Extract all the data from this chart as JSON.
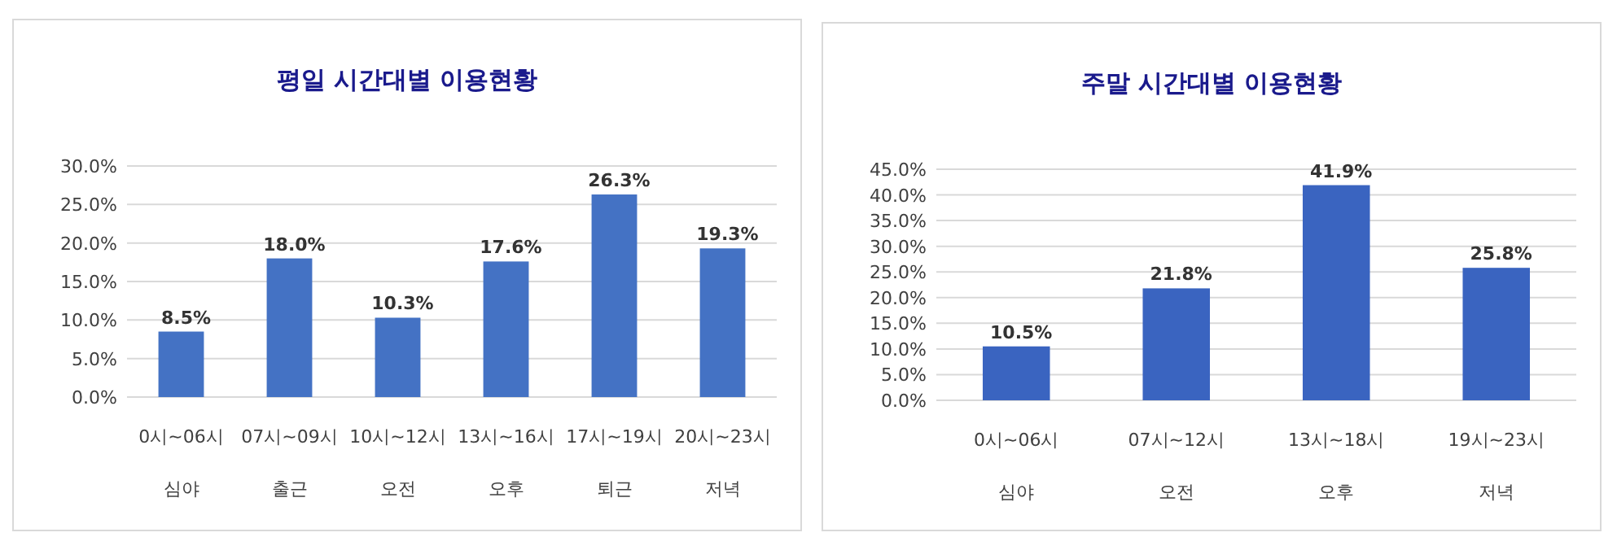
{
  "chart_data": [
    {
      "type": "bar",
      "title": "평일 시간대별 이용현황",
      "categories": [
        "0시~06시\n심야",
        "07시~09시\n출근",
        "10시~12시\n오전",
        "13시~16시\n오후",
        "17시~19시\n퇴근",
        "20시~23시\n저녁"
      ],
      "values": [
        8.5,
        18.0,
        10.3,
        17.6,
        26.3,
        19.3
      ],
      "value_labels": [
        "8.5%",
        "18.0%",
        "10.3%",
        "17.6%",
        "26.3%",
        "19.3%"
      ],
      "color": "#4472c4",
      "ylim": [
        0,
        30
      ],
      "yticks": [
        {
          "value": 0,
          "label": "0.0%"
        },
        {
          "value": 5,
          "label": "5.0%"
        },
        {
          "value": 10,
          "label": "10.0%"
        },
        {
          "value": 15,
          "label": "15.0%"
        },
        {
          "value": 20,
          "label": "20.0%"
        },
        {
          "value": 25,
          "label": "25.0%"
        },
        {
          "value": 30,
          "label": "30.0%"
        }
      ],
      "grid": "y"
    },
    {
      "type": "bar",
      "title": "주말 시간대별 이용현황",
      "categories": [
        "0시~06시\n심야",
        "07시~12시\n오전",
        "13시~18시\n오후",
        "19시~23시\n저녁"
      ],
      "values": [
        10.5,
        21.8,
        41.9,
        25.8
      ],
      "value_labels": [
        "10.5%",
        "21.8%",
        "41.9%",
        "25.8%"
      ],
      "color": "#3a64c0",
      "ylim": [
        0,
        45
      ],
      "yticks": [
        {
          "value": 0,
          "label": "0.0%"
        },
        {
          "value": 5,
          "label": "5.0%"
        },
        {
          "value": 10,
          "label": "10.0%"
        },
        {
          "value": 15,
          "label": "15.0%"
        },
        {
          "value": 20,
          "label": "20.0%"
        },
        {
          "value": 25,
          "label": "25.0%"
        },
        {
          "value": 30,
          "label": "30.0%"
        },
        {
          "value": 35,
          "label": "35.0%"
        },
        {
          "value": 40,
          "label": "40.0%"
        },
        {
          "value": 45,
          "label": "45.0%"
        }
      ],
      "grid": "y"
    }
  ]
}
